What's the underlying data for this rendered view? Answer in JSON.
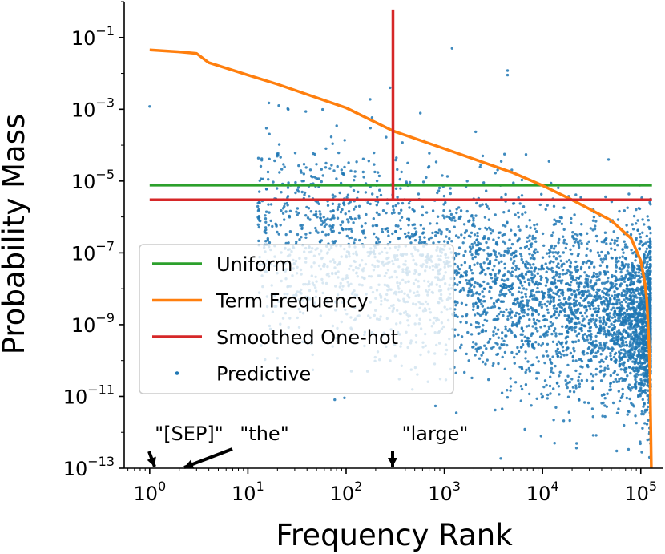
{
  "chart_data": {
    "type": "scatter",
    "title": "",
    "xlabel": "Frequency Rank",
    "ylabel": "Probability Mass",
    "xscale": "log",
    "yscale": "log",
    "xlim": [
      0.55,
      170000
    ],
    "ylim": [
      1e-13,
      1
    ],
    "x_ticks": [
      {
        "value": 1,
        "base": "10",
        "exp": "0"
      },
      {
        "value": 10,
        "base": "10",
        "exp": "1"
      },
      {
        "value": 100,
        "base": "10",
        "exp": "2"
      },
      {
        "value": 1000,
        "base": "10",
        "exp": "3"
      },
      {
        "value": 10000,
        "base": "10",
        "exp": "4"
      },
      {
        "value": 100000,
        "base": "10",
        "exp": "5"
      }
    ],
    "y_ticks": [
      {
        "value": 1e-13,
        "base": "10",
        "exp": "−13"
      },
      {
        "value": 1e-11,
        "base": "10",
        "exp": "−11"
      },
      {
        "value": 1e-09,
        "base": "10",
        "exp": "−9"
      },
      {
        "value": 1e-07,
        "base": "10",
        "exp": "−7"
      },
      {
        "value": 1e-05,
        "base": "10",
        "exp": "−5"
      },
      {
        "value": 0.001,
        "base": "10",
        "exp": "−3"
      },
      {
        "value": 0.1,
        "base": "10",
        "exp": "−1"
      }
    ],
    "series": [
      {
        "name": "Uniform",
        "kind": "line",
        "color": "#2ca02c",
        "x": [
          1,
          130000
        ],
        "y": [
          7.7e-06,
          7.7e-06
        ]
      },
      {
        "name": "Term Frequency",
        "kind": "line",
        "color": "#ff7f0e",
        "x": [
          1,
          2,
          3,
          4,
          10,
          20,
          100,
          300,
          1000,
          5000,
          10000,
          20000,
          50000,
          80000,
          100000,
          110000,
          115000,
          120000,
          124000,
          126000,
          128000
        ],
        "y": [
          0.045,
          0.04,
          0.036,
          0.02,
          0.009,
          0.005,
          0.0011,
          0.00025,
          8e-05,
          1.7e-05,
          7.5e-06,
          3e-06,
          8e-07,
          2.5e-07,
          6e-08,
          1.5e-08,
          5e-09,
          5e-10,
          5e-11,
          2e-12,
          1e-13
        ]
      },
      {
        "name": "Smoothed One-hot",
        "kind": "line",
        "color": "#d62728",
        "x": [
          1,
          130000
        ],
        "y": [
          3e-06,
          3e-06
        ],
        "spike": {
          "x": 300,
          "y_top": 0.6,
          "y_bottom": 3e-06
        }
      },
      {
        "name": "Predictive",
        "kind": "scatter",
        "color": "#1f77b4",
        "description": "approx. 4000 points, sparse at low rank, dense band 1e-10 to 1e-7 at ranks 1000-120000",
        "notable_points": [
          {
            "x": 1,
            "y": 0.0012
          },
          {
            "x": 280,
            "y": 0.004
          },
          {
            "x": 1200,
            "y": 0.05
          },
          {
            "x": 4400,
            "y": 0.009
          },
          {
            "x": 4400,
            "y": 0.012
          }
        ]
      }
    ],
    "legend": {
      "position": "center-left",
      "entries": [
        "Uniform",
        "Term Frequency",
        "Smoothed One-hot",
        "Predictive"
      ]
    },
    "annotations": [
      {
        "text": "\"[SEP]\"",
        "x": 1
      },
      {
        "text": "\"the\"",
        "x": 2
      },
      {
        "text": "\"large\"",
        "x": 300
      }
    ]
  },
  "colors": {
    "uniform": "#2ca02c",
    "term_frequency": "#ff7f0e",
    "smoothed": "#d62728",
    "predictive": "#1f77b4"
  }
}
